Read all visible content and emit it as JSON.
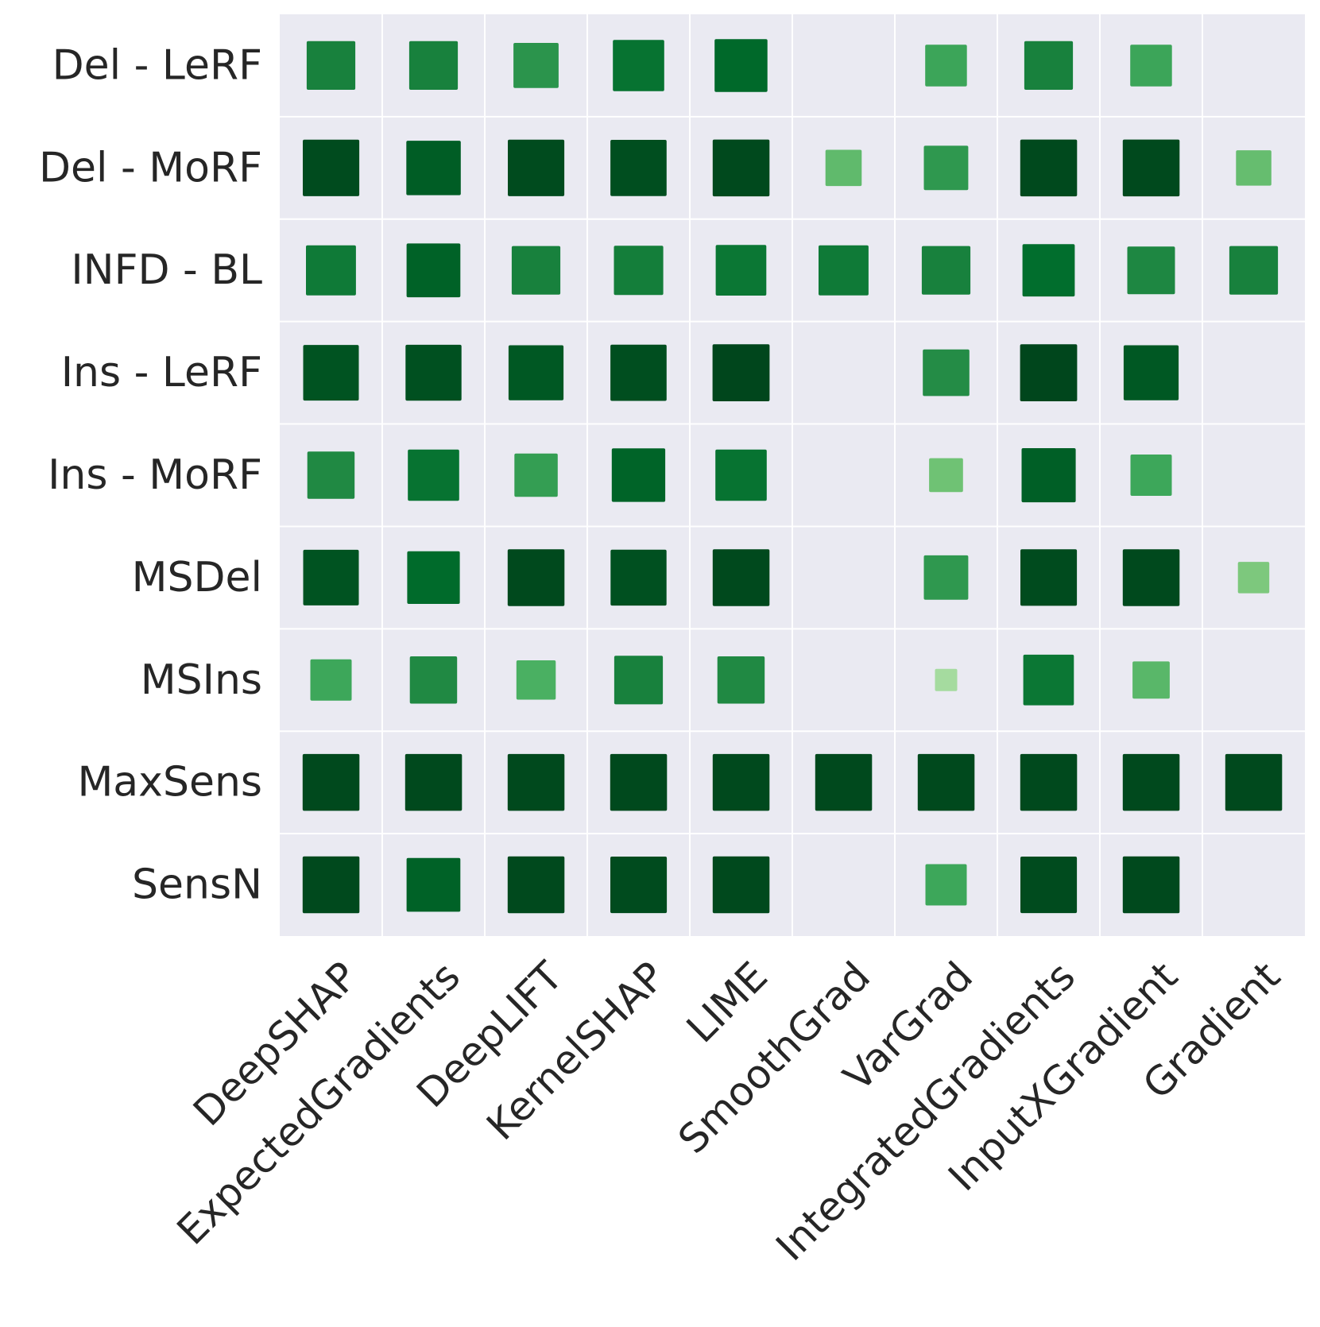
{
  "chart_data": {
    "type": "heatmap",
    "encoding": "square size and color intensity",
    "colormap": "Greens",
    "background_color": "#eaeaf2",
    "grid": true,
    "grid_color": "#ffffff",
    "title": "",
    "xlabel": "",
    "ylabel": "",
    "rows": [
      "Del - LeRF",
      "Del - MoRF",
      "INFD - BL",
      "Ins - LeRF",
      "Ins - MoRF",
      "MSDel",
      "MSIns",
      "MaxSens",
      "SensN"
    ],
    "columns": [
      "DeepSHAP",
      "ExpectedGradients",
      "DeepLIFT",
      "KernelSHAP",
      "LIME",
      "SmoothGrad",
      "VarGrad",
      "IntegratedGradients",
      "InputXGradient",
      "Gradient"
    ],
    "values": [
      [
        0.72,
        0.72,
        0.62,
        0.8,
        0.85,
        0.0,
        0.53,
        0.72,
        0.53,
        0.0
      ],
      [
        0.97,
        0.9,
        0.97,
        0.96,
        0.98,
        0.4,
        0.6,
        0.98,
        0.98,
        0.38
      ],
      [
        0.76,
        0.88,
        0.72,
        0.74,
        0.78,
        0.76,
        0.72,
        0.83,
        0.69,
        0.72
      ],
      [
        0.94,
        0.95,
        0.92,
        0.96,
        0.99,
        0.0,
        0.66,
        0.99,
        0.92,
        0.0
      ],
      [
        0.68,
        0.8,
        0.57,
        0.87,
        0.8,
        0.0,
        0.35,
        0.89,
        0.52,
        0.0
      ],
      [
        0.94,
        0.84,
        0.98,
        0.95,
        0.98,
        0.0,
        0.6,
        0.97,
        0.98,
        0.3
      ],
      [
        0.52,
        0.68,
        0.47,
        0.72,
        0.68,
        0.0,
        0.15,
        0.78,
        0.42,
        0.0
      ],
      [
        0.98,
        0.98,
        0.98,
        0.98,
        0.98,
        0.98,
        0.98,
        0.98,
        0.98,
        0.98
      ],
      [
        0.98,
        0.88,
        0.98,
        0.97,
        0.98,
        0.0,
        0.52,
        0.97,
        0.98,
        0.0
      ]
    ]
  }
}
